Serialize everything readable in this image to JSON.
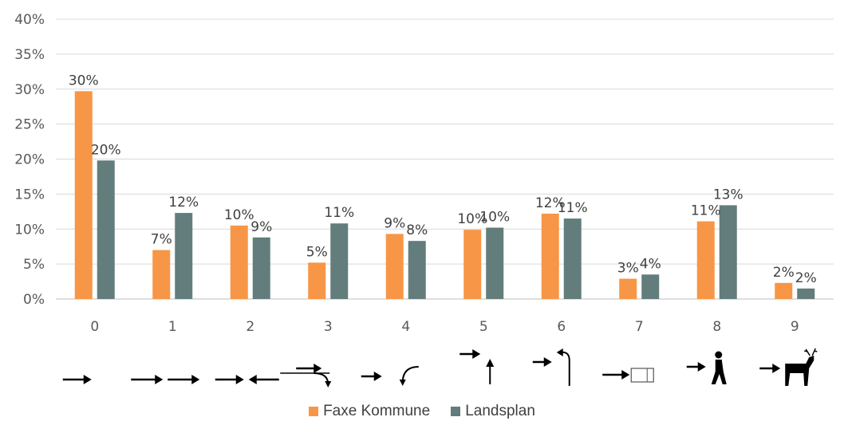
{
  "chart_data": {
    "type": "bar",
    "categories": [
      "0",
      "1",
      "2",
      "3",
      "4",
      "5",
      "6",
      "7",
      "8",
      "9"
    ],
    "category_icons": [
      "arrow-straight-icon",
      "arrow-following-icon",
      "arrows-head-on-icon",
      "arrow-turn-right-icon",
      "arrow-turn-left-icon",
      "arrows-crossing-icon",
      "arrow-u-turn-icon",
      "arrow-parked-car-icon",
      "arrow-pedestrian-icon",
      "arrow-deer-icon"
    ],
    "series": [
      {
        "name": "Faxe Kommune",
        "color": "#F79646",
        "values": [
          29.7,
          7.0,
          10.5,
          5.2,
          9.3,
          9.9,
          12.2,
          2.9,
          11.1,
          2.3
        ],
        "labels": [
          "30%",
          "7%",
          "10%",
          "5%",
          "9%",
          "10%",
          "12%",
          "3%",
          "11%",
          "2%"
        ]
      },
      {
        "name": "Landsplan",
        "color": "#627D7B",
        "values": [
          19.8,
          12.3,
          8.8,
          10.8,
          8.3,
          10.2,
          11.5,
          3.5,
          13.4,
          1.5
        ],
        "labels": [
          "20%",
          "12%",
          "9%",
          "11%",
          "8%",
          "10%",
          "11%",
          "4%",
          "13%",
          "2%"
        ]
      }
    ],
    "ylim": [
      0,
      40
    ],
    "yticks": [
      "0%",
      "5%",
      "10%",
      "15%",
      "20%",
      "25%",
      "30%",
      "35%",
      "40%"
    ],
    "grid": true,
    "legend_position": "bottom",
    "title": "",
    "xlabel": "",
    "ylabel": ""
  }
}
